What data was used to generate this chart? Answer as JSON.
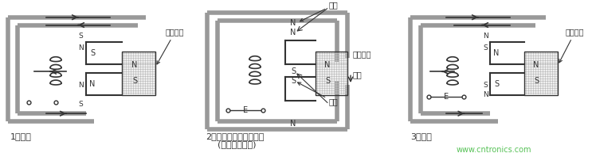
{
  "bg_color": "#ffffff",
  "line_color": "#333333",
  "gray_color": "#999999",
  "label1": "1、释放",
  "label2": "2、从释放到吸动的过渡",
  "label2b": "(加上工作电压)",
  "label3": "3、吸动",
  "yongjiu": "永久磁铁",
  "paichi": "排斥",
  "xiyin": "吸引",
  "yundong": "运动",
  "watermark": "www.cntronics.com",
  "N": "N",
  "S": "S",
  "E": "E"
}
